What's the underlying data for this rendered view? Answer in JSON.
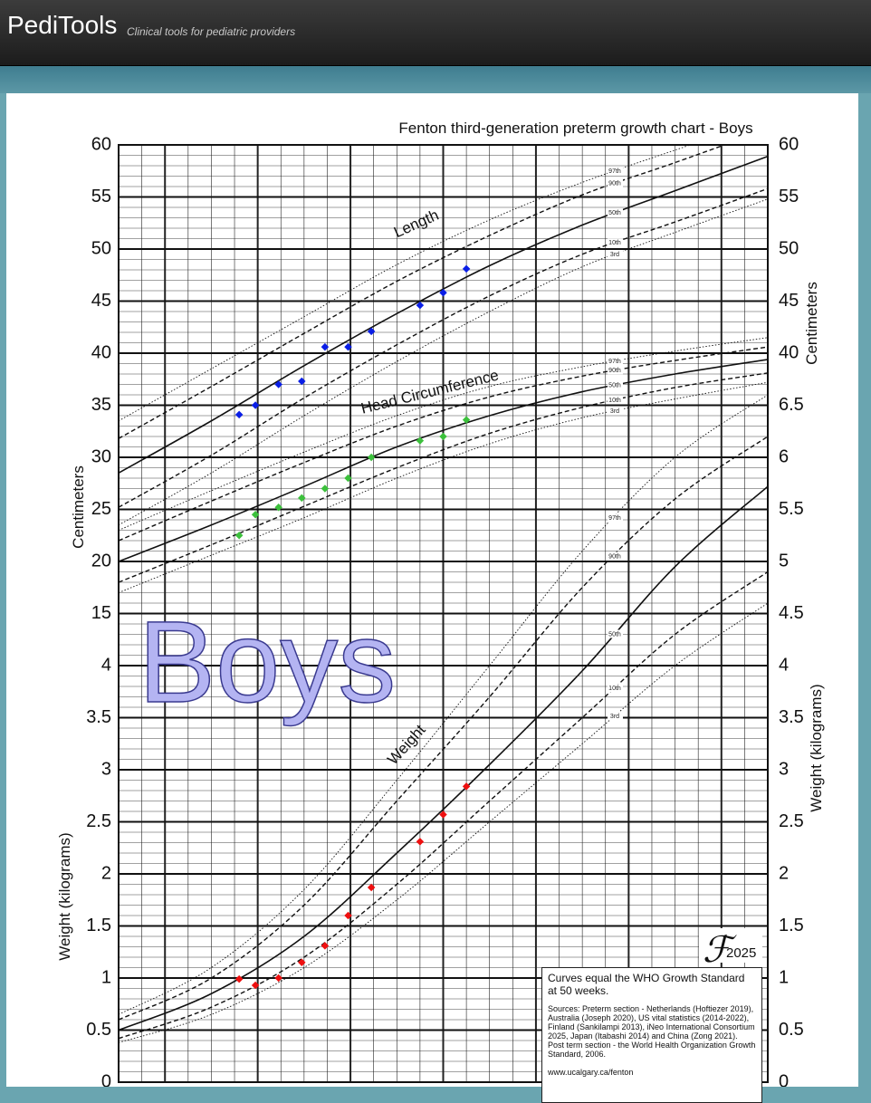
{
  "header": {
    "title": "PediTools",
    "subtitle": "Clinical tools for pediatric providers"
  },
  "chart_data": {
    "type": "growth",
    "title": "Fenton third-generation preterm growth chart - Boys",
    "watermark": "Boys",
    "y_label": "Centimeters",
    "y2_label": "Weight (kilograms)",
    "xlim": [
      22,
      50
    ],
    "ylim": [
      -30,
      60
    ],
    "y2lim": [
      0,
      9
    ],
    "yticks": [
      15,
      20,
      25,
      30,
      35,
      40,
      45,
      50,
      55,
      60
    ],
    "y2ticks": [
      0,
      0.5,
      1,
      1.5,
      2,
      2.5,
      3,
      3.5,
      4
    ],
    "right_yticks": [
      40,
      45,
      50,
      55,
      60
    ],
    "right_y2ticks": [
      0,
      0.5,
      1,
      1.5,
      2,
      2.5,
      3,
      3.5,
      4,
      4.5,
      5,
      5.5,
      6,
      6.5
    ],
    "grid": true,
    "curve_weeks": [
      22,
      26,
      30,
      34,
      38,
      42,
      46,
      50
    ],
    "measures": [
      {
        "name": "Length",
        "axis": "y",
        "color": "#0a1ee6",
        "x": [
          27.2,
          27.9,
          28.9,
          29.9,
          30.9,
          31.9,
          32.9,
          35,
          36,
          37
        ],
        "values": [
          34.1,
          35.0,
          37.0,
          37.3,
          40.6,
          40.6,
          42.1,
          44.6,
          45.8,
          48.1
        ],
        "curves": [
          {
            "name": "97th",
            "dash": "dotted",
            "values": [
              33.5,
              38.5,
              43.5,
              48.5,
              52.8,
              56.4,
              59.5,
              62.5
            ]
          },
          {
            "name": "90th",
            "dash": "dashed",
            "values": [
              31.8,
              36.8,
              41.9,
              46.9,
              51.3,
              55.2,
              58.3,
              61.5
            ]
          },
          {
            "name": "50th",
            "dash": "solid",
            "values": [
              28.5,
              33.5,
              38.8,
              43.8,
              48.4,
              52.3,
              55.6,
              58.9
            ]
          },
          {
            "name": "10th",
            "dash": "dashed",
            "values": [
              25.2,
              30.2,
              35.7,
              40.8,
              45.5,
              49.5,
              52.6,
              55.8
            ]
          },
          {
            "name": "3rd",
            "dash": "dotted",
            "values": [
              23.5,
              28.5,
              34,
              39.2,
              44,
              48.3,
              51.6,
              54.8
            ]
          }
        ]
      },
      {
        "name": "Head Circumference",
        "axis": "y",
        "color": "#3cc03c",
        "x": [
          27.2,
          27.9,
          28.9,
          29.9,
          30.9,
          31.9,
          32.9,
          35,
          36,
          37
        ],
        "values": [
          22.5,
          24.5,
          25.2,
          26.1,
          27.0,
          28.0,
          30.0,
          31.6,
          32.0,
          33.6
        ],
        "curves": [
          {
            "name": "97th",
            "dash": "dotted",
            "values": [
              23,
              26.8,
              30.5,
              34,
              36.8,
              38.7,
              40.2,
              41.5
            ]
          },
          {
            "name": "90th",
            "dash": "dashed",
            "values": [
              22,
              25.8,
              29.5,
              33,
              35.8,
              37.8,
              39.3,
              40.6
            ]
          },
          {
            "name": "50th",
            "dash": "solid",
            "values": [
              20,
              23.5,
              27.2,
              31,
              34,
              36.3,
              38,
              39.4
            ]
          },
          {
            "name": "10th",
            "dash": "dashed",
            "values": [
              18,
              21.6,
              25.3,
              29,
              32.3,
              34.8,
              36.7,
              38.1
            ]
          },
          {
            "name": "3rd",
            "dash": "dotted",
            "values": [
              17,
              20.6,
              24.2,
              28,
              31.3,
              33.8,
              35.6,
              37.2
            ]
          }
        ]
      },
      {
        "name": "Weight",
        "axis": "y2",
        "color": "#ee1010",
        "x": [
          27.2,
          27.9,
          28.9,
          29.9,
          30.9,
          31.9,
          32.9,
          35,
          36,
          37
        ],
        "values": [
          0.99,
          0.93,
          1.0,
          1.15,
          1.31,
          1.6,
          1.87,
          2.31,
          2.57,
          2.84
        ],
        "curves": [
          {
            "name": "97th",
            "dash": "dotted",
            "values": [
              0.65,
              1.1,
              1.85,
              2.9,
              4.0,
              5.1,
              6.0,
              6.6
            ]
          },
          {
            "name": "90th",
            "dash": "dashed",
            "values": [
              0.6,
              1.0,
              1.7,
              2.7,
              3.7,
              4.75,
              5.6,
              6.2
            ]
          },
          {
            "name": "50th",
            "dash": "solid",
            "values": [
              0.5,
              0.85,
              1.4,
              2.2,
              3.05,
              3.95,
              4.95,
              5.72
            ]
          },
          {
            "name": "10th",
            "dash": "dashed",
            "values": [
              0.42,
              0.72,
              1.2,
              1.9,
              2.7,
              3.5,
              4.3,
              4.9
            ]
          },
          {
            "name": "3rd",
            "dash": "dotted",
            "values": [
              0.38,
              0.65,
              1.1,
              1.75,
              2.5,
              3.25,
              4.0,
              4.6
            ]
          }
        ]
      }
    ],
    "logo": "ℱ",
    "logo_year": "2025",
    "note": "Curves equal the WHO Growth Standard at 50 weeks.",
    "sources": "Sources: Preterm section - Netherlands (Hoftiezer 2019), Australia (Joseph 2020), US vital statistics (2014-2022), Finland (Sankilampi 2013), iNeo International Consortium 2025, Japan (Itabashi 2014) and China (Zong 2021). Post term section - the World Health Organization Growth Standard, 2006.",
    "url": "www.ucalgary.ca/fenton"
  }
}
